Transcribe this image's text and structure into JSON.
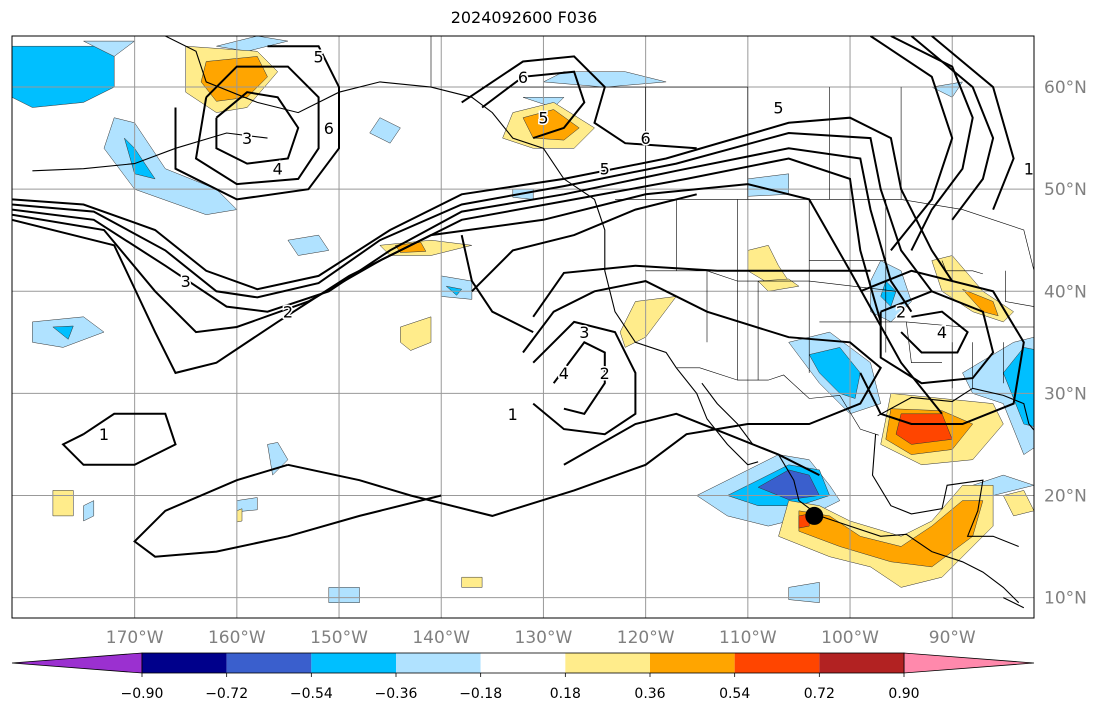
{
  "title": "2024092600 F036",
  "map": {
    "projection": "plate-carree",
    "lon_range": [
      -182,
      -82
    ],
    "lat_range": [
      8,
      65
    ],
    "lon_ticks": [
      "170°W",
      "160°W",
      "150°W",
      "140°W",
      "130°W",
      "120°W",
      "110°W",
      "100°W",
      "90°W"
    ],
    "lat_ticks": [
      "60°N",
      "50°N",
      "40°N",
      "30°N",
      "20°N",
      "10°N"
    ],
    "grid": true,
    "contour_labels": [
      {
        "text": "5",
        "lon": -152,
        "lat": 63
      },
      {
        "text": "6",
        "lon": -151,
        "lat": 56
      },
      {
        "text": "3",
        "lon": -159,
        "lat": 55
      },
      {
        "text": "4",
        "lon": -156,
        "lat": 52
      },
      {
        "text": "5",
        "lon": -130,
        "lat": 57
      },
      {
        "text": "6",
        "lon": -132,
        "lat": 61
      },
      {
        "text": "6",
        "lon": -120,
        "lat": 55
      },
      {
        "text": "5",
        "lon": -107,
        "lat": 58
      },
      {
        "text": "5",
        "lon": -124,
        "lat": 52
      },
      {
        "text": "3",
        "lon": -165,
        "lat": 41
      },
      {
        "text": "2",
        "lon": -155,
        "lat": 38
      },
      {
        "text": "3",
        "lon": -126,
        "lat": 36
      },
      {
        "text": "4",
        "lon": -128,
        "lat": 32
      },
      {
        "text": "2",
        "lon": -124,
        "lat": 32
      },
      {
        "text": "1",
        "lon": -133,
        "lat": 28
      },
      {
        "text": "1",
        "lon": -173,
        "lat": 26
      },
      {
        "text": "2",
        "lon": -95,
        "lat": 38
      },
      {
        "text": "4",
        "lon": -91,
        "lat": 36
      },
      {
        "text": "1",
        "lon": -82.5,
        "lat": 52
      }
    ],
    "marker": {
      "name": "storm-center",
      "lon": -103.5,
      "lat": 18,
      "color": "#000000"
    }
  },
  "colorbar": {
    "levels": [
      "−0.90",
      "−0.72",
      "−0.54",
      "−0.36",
      "−0.18",
      "0.18",
      "0.36",
      "0.54",
      "0.72",
      "0.90"
    ],
    "colors": [
      "#9b30d0",
      "#00008b",
      "#3a5fcd",
      "#00bfff",
      "#b0e2ff",
      "#ffffff",
      "#ffec8b",
      "#ffa500",
      "#ff4500",
      "#b22222",
      "#ff89ac"
    ]
  }
}
